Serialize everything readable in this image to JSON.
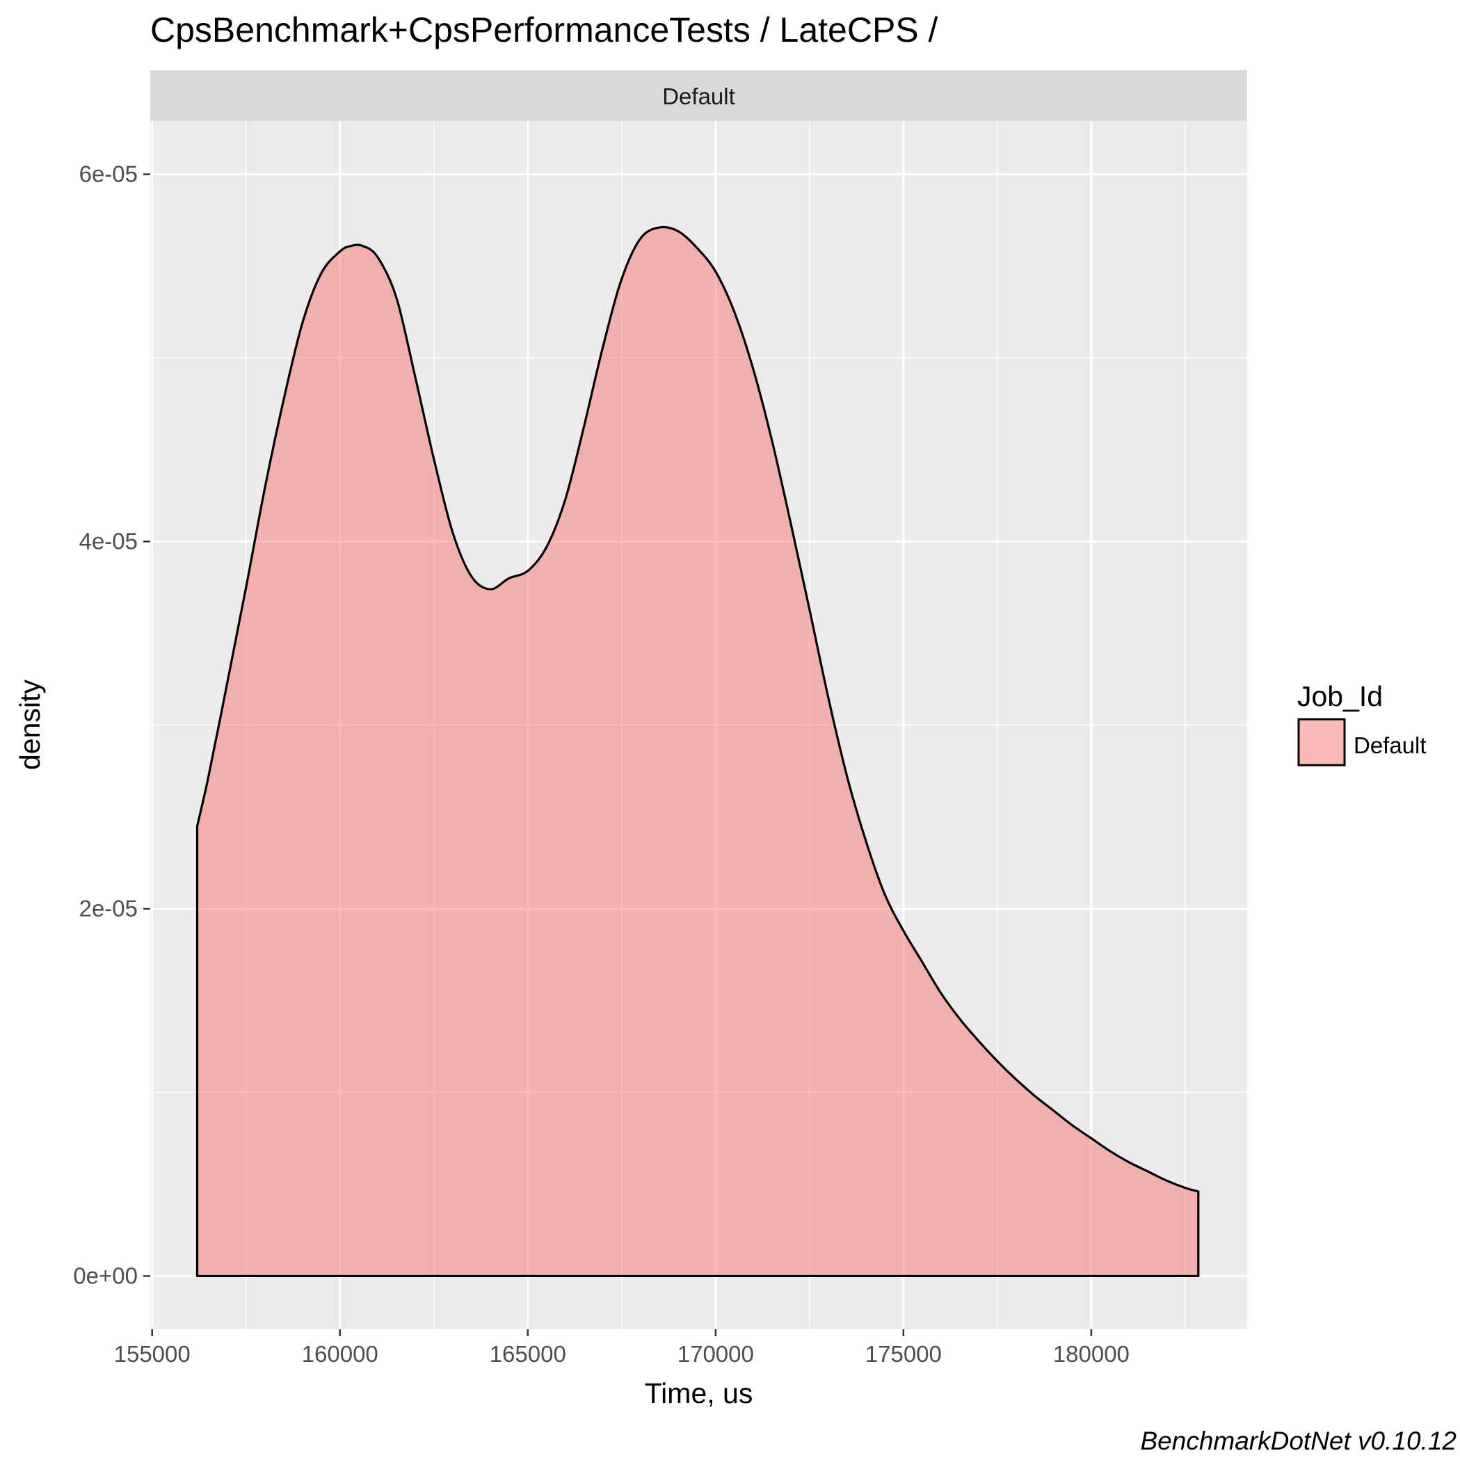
{
  "chart_data": {
    "type": "area",
    "title": "CpsBenchmark+CpsPerformanceTests / LateCPS /",
    "facet_label": "Default",
    "xlabel": "Time, us",
    "ylabel": "density",
    "xlim": [
      154950,
      184150
    ],
    "ylim": [
      -2.9e-06,
      6.29e-05
    ],
    "x_ticks": [
      {
        "value": 155000,
        "label": "155000"
      },
      {
        "value": 160000,
        "label": "160000"
      },
      {
        "value": 165000,
        "label": "165000"
      },
      {
        "value": 170000,
        "label": "170000"
      },
      {
        "value": 175000,
        "label": "175000"
      },
      {
        "value": 180000,
        "label": "180000"
      }
    ],
    "y_ticks": [
      {
        "value": 0,
        "label": "0e+00"
      },
      {
        "value": 2e-05,
        "label": "2e-05"
      },
      {
        "value": 4e-05,
        "label": "4e-05"
      },
      {
        "value": 6e-05,
        "label": "6e-05"
      }
    ],
    "grid": true,
    "legend": {
      "title": "Job_Id",
      "position": "right"
    },
    "colors": {
      "fill": "#F8766D",
      "panel": "#EBEBEB",
      "strip": "#D9D9D9",
      "grid": "#FFFFFF",
      "outline": "#000000"
    },
    "series": [
      {
        "name": "Default",
        "x": [
          156200,
          156500,
          157000,
          157500,
          158000,
          158500,
          159000,
          159500,
          160000,
          160300,
          160600,
          161000,
          161500,
          162000,
          162500,
          163000,
          163500,
          164000,
          164500,
          165000,
          165500,
          166000,
          166500,
          167000,
          167500,
          168000,
          168500,
          169000,
          169500,
          170000,
          170500,
          171000,
          171500,
          172000,
          172500,
          173000,
          173500,
          174000,
          174500,
          175000,
          175500,
          176000,
          176500,
          177000,
          177500,
          178000,
          178500,
          179000,
          179500,
          180000,
          180500,
          181000,
          181500,
          182000,
          182500,
          182850
        ],
        "values": [
          2.45e-05,
          2.72e-05,
          3.23e-05,
          3.75e-05,
          4.29e-05,
          4.77e-05,
          5.19e-05,
          5.46e-05,
          5.58e-05,
          5.61e-05,
          5.61e-05,
          5.55e-05,
          5.33e-05,
          4.9e-05,
          4.45e-05,
          4.05e-05,
          3.81e-05,
          3.74e-05,
          3.8e-05,
          3.84e-05,
          3.97e-05,
          4.23e-05,
          4.63e-05,
          5.06e-05,
          5.43e-05,
          5.65e-05,
          5.71e-05,
          5.69e-05,
          5.6e-05,
          5.47e-05,
          5.25e-05,
          4.94e-05,
          4.55e-05,
          4.1e-05,
          3.63e-05,
          3.15e-05,
          2.72e-05,
          2.37e-05,
          2.08e-05,
          1.88e-05,
          1.71e-05,
          1.54e-05,
          1.4e-05,
          1.28e-05,
          1.17e-05,
          1.07e-05,
          9.8e-06,
          9e-06,
          8.2e-06,
          7.5e-06,
          6.8e-06,
          6.2e-06,
          5.7e-06,
          5.2e-06,
          4.8e-06,
          4.6e-06
        ]
      }
    ],
    "caption": "BenchmarkDotNet v0.10.12"
  }
}
